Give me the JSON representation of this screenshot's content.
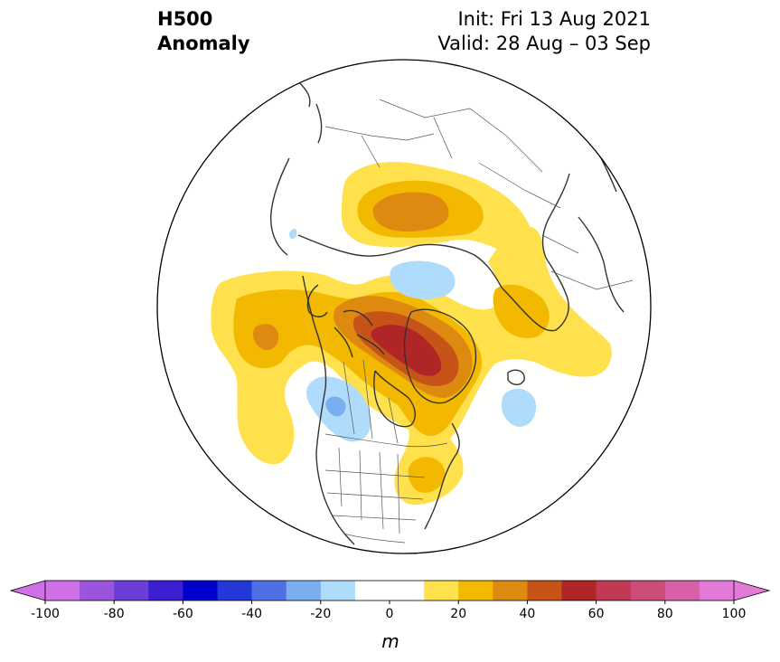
{
  "title": {
    "left_line1": "H500",
    "left_line2": "Anomaly",
    "right_line1": "Init: Fri 13 Aug 2021",
    "right_line2": "Valid: 28 Aug – 03 Sep"
  },
  "colorbar": {
    "unit": "m",
    "levels": [
      -100,
      -90,
      -80,
      -70,
      -60,
      -50,
      -40,
      -30,
      -20,
      -10,
      0,
      10,
      20,
      30,
      40,
      50,
      60,
      70,
      80,
      90,
      100
    ],
    "colors": [
      "#d070e6",
      "#9a55dc",
      "#6a3fd8",
      "#3b1fd1",
      "#0000cc",
      "#2438d8",
      "#4f6fe4",
      "#79aef0",
      "#afdcfb",
      "#ffffff",
      "#ffffff",
      "#ffe14d",
      "#f2b900",
      "#de8a10",
      "#c65418",
      "#b02626",
      "#bf3a52",
      "#cc4c7a",
      "#d860a6",
      "#e47ad8"
    ],
    "extend_low_color": "#d070e6",
    "extend_high_color": "#e47ad8",
    "tick_labels": [
      "-100",
      "-80",
      "-60",
      "-40",
      "-20",
      "0",
      "20",
      "40",
      "60",
      "80",
      "100"
    ]
  },
  "map": {
    "projection": "north-polar-stereographic",
    "ocean_color": "#fffffd",
    "coast_color": "#333333",
    "features": [
      {
        "name": "positive-anomaly-canada-greenland",
        "level": 40
      },
      {
        "name": "positive-anomaly-siberia",
        "level": 30
      },
      {
        "name": "positive-anomaly-eastern-asia",
        "level": 10
      },
      {
        "name": "positive-anomaly-europe-atlantic",
        "level": 10
      },
      {
        "name": "positive-anomaly-eastern-us",
        "level": 20
      },
      {
        "name": "negative-anomaly-western-canada",
        "level": -20
      },
      {
        "name": "negative-anomaly-arctic",
        "level": -10
      },
      {
        "name": "negative-anomaly-atlantic",
        "level": -10
      }
    ]
  }
}
